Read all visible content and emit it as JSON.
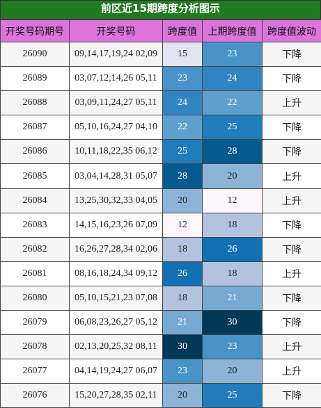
{
  "header": {
    "title": "前区近15期跨度分析图示"
  },
  "table": {
    "columns": [
      "开奖号码期号",
      "开奖号码",
      "跨度值",
      "上期跨度值",
      "跨度值波动"
    ],
    "rows": [
      [
        "26090",
        "09,14,17,19,24 02,09",
        15,
        23,
        "下降"
      ],
      [
        "26089",
        "03,07,12,14,26 05,11",
        23,
        24,
        "下降"
      ],
      [
        "26088",
        "03,09,11,24,27 05,11",
        24,
        22,
        "上升"
      ],
      [
        "26087",
        "05,10,16,24,27 04,10",
        22,
        25,
        "下降"
      ],
      [
        "26086",
        "10,11,18,22,35 06,12",
        25,
        28,
        "下降"
      ],
      [
        "26085",
        "03,04,14,28,31 05,07",
        28,
        20,
        "上升"
      ],
      [
        "26084",
        "13,25,30,32,33 04,05",
        20,
        12,
        "上升"
      ],
      [
        "26083",
        "14,15,16,23,26 07,09",
        12,
        18,
        "下降"
      ],
      [
        "26082",
        "16,26,27,28,34 02,06",
        18,
        26,
        "下降"
      ],
      [
        "26081",
        "08,16,18,24,34 09,12",
        26,
        18,
        "上升"
      ],
      [
        "26080",
        "05,10,15,21,23 07,08",
        18,
        21,
        "下降"
      ],
      [
        "26079",
        "06,08,23,26,27 05,12",
        21,
        30,
        "下降"
      ],
      [
        "26078",
        "02,13,20,25,32 08,11",
        30,
        23,
        "上升"
      ],
      [
        "26077",
        "04,14,19,24,27 06,07",
        23,
        20,
        "上升"
      ],
      [
        "26076",
        "15,20,27,28,35 02,11",
        20,
        25,
        "下降"
      ]
    ]
  }
}
